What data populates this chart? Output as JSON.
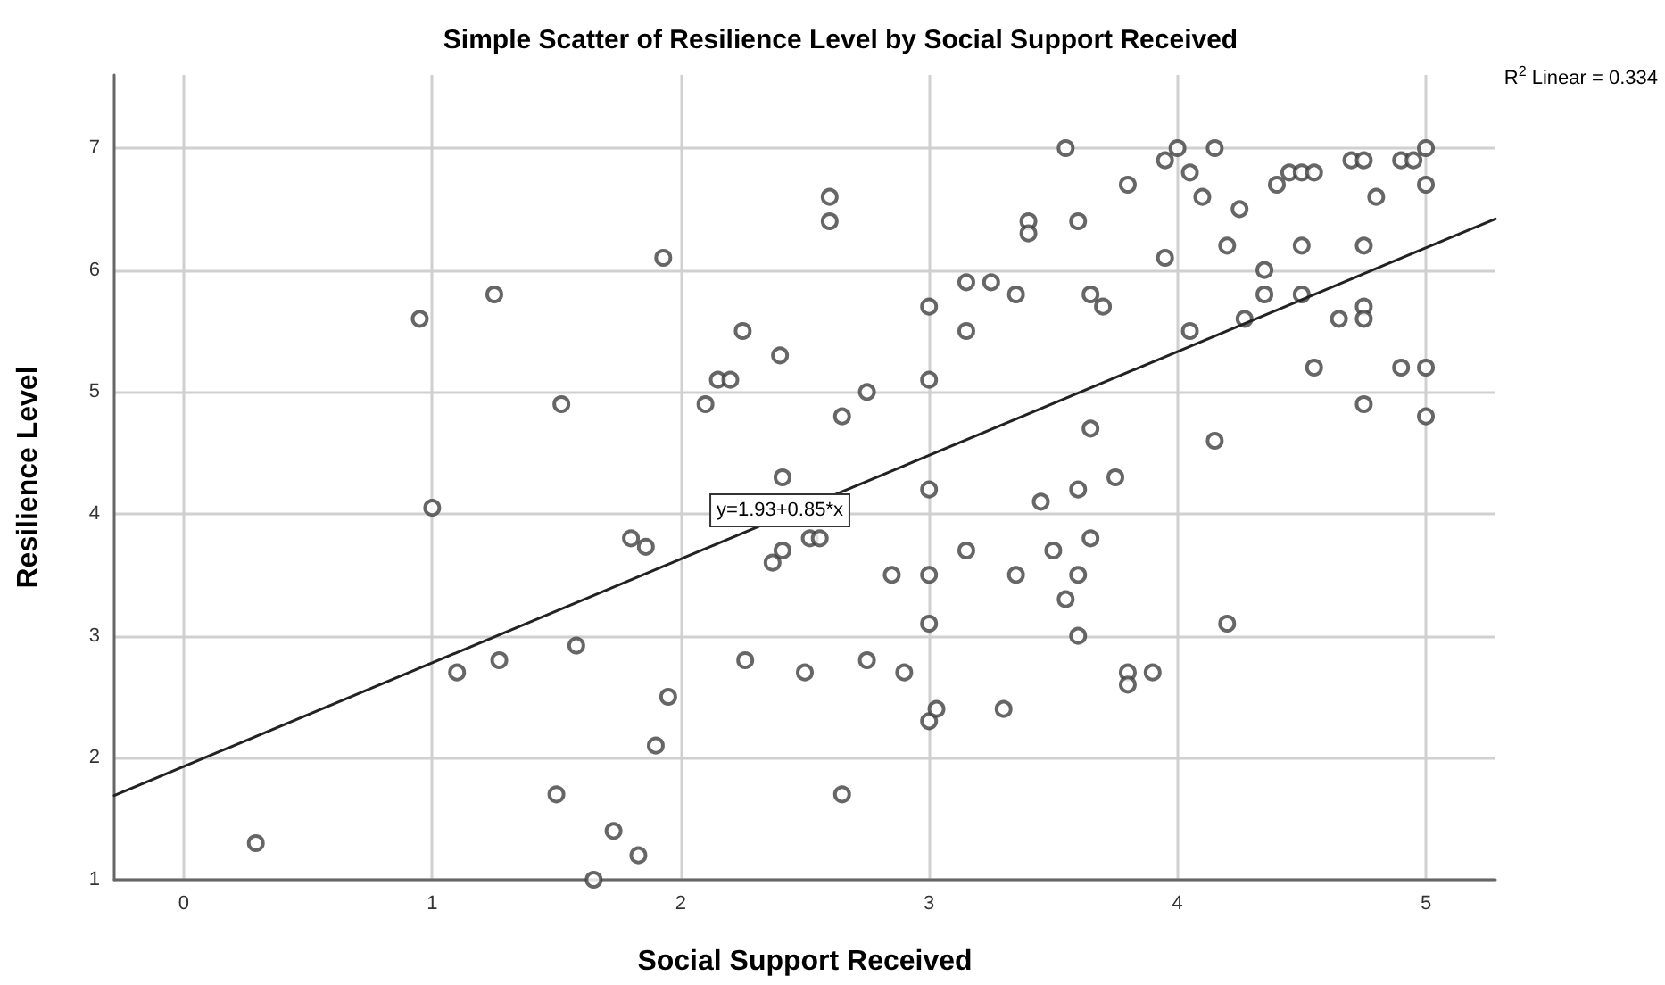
{
  "chart_data": {
    "type": "scatter",
    "title": "Simple Scatter of Resilience Level by Social Support Received",
    "xlabel": "Social Support Received",
    "ylabel": "Resilience Level",
    "xlim": [
      -0.28,
      5.28
    ],
    "ylim": [
      1,
      7.6
    ],
    "xticks": [
      0,
      1,
      2,
      3,
      4,
      5
    ],
    "yticks": [
      1,
      2,
      3,
      4,
      5,
      6,
      7
    ],
    "grid": true,
    "marker": "circle",
    "annotations": [
      "R$^{2}$ Linear = 0.334",
      "y=1.93+0.85*x"
    ],
    "series": [
      {
        "color": "#404040",
        "x": [
          0.29,
          0.95,
          1.0,
          1.1,
          1.25,
          1.27,
          1.5,
          1.52,
          1.58,
          1.65,
          1.73,
          1.8,
          1.83,
          1.86,
          1.9,
          1.93,
          1.95,
          2.1,
          2.15,
          2.2,
          2.25,
          2.26,
          2.37,
          2.4,
          2.41,
          2.41,
          2.5,
          2.52,
          2.56,
          2.6,
          2.6,
          2.65,
          2.65,
          2.75,
          2.75,
          2.85,
          2.9,
          3.0,
          3.0,
          3.0,
          3.0,
          3.0,
          3.0,
          3.03,
          3.15,
          3.15,
          3.15,
          3.25,
          3.3,
          3.35,
          3.35,
          3.4,
          3.4,
          3.45,
          3.5,
          3.55,
          3.55,
          3.6,
          3.6,
          3.6,
          3.6,
          3.65,
          3.65,
          3.65,
          3.7,
          3.75,
          3.8,
          3.8,
          3.8,
          3.9,
          3.95,
          3.95,
          4.0,
          4.05,
          4.05,
          4.1,
          4.15,
          4.15,
          4.2,
          4.2,
          4.25,
          4.27,
          4.35,
          4.35,
          4.4,
          4.45,
          4.5,
          4.5,
          4.5,
          4.55,
          4.55,
          4.65,
          4.7,
          4.75,
          4.75,
          4.75,
          4.75,
          4.75,
          4.8,
          4.9,
          4.9,
          4.95,
          5.0,
          5.0,
          5.0,
          5.0
        ],
        "values": [
          1.3,
          5.6,
          4.05,
          2.7,
          5.8,
          2.8,
          1.7,
          4.9,
          2.92,
          1.0,
          1.4,
          3.8,
          1.2,
          3.73,
          2.1,
          6.1,
          2.5,
          4.9,
          5.1,
          5.1,
          5.5,
          2.8,
          3.6,
          5.3,
          4.3,
          3.7,
          2.7,
          3.8,
          3.8,
          6.6,
          6.4,
          4.8,
          1.7,
          5.0,
          2.8,
          3.5,
          2.7,
          5.7,
          5.1,
          4.2,
          3.5,
          3.1,
          2.3,
          2.4,
          5.9,
          5.5,
          3.7,
          5.9,
          2.4,
          5.8,
          3.5,
          6.4,
          6.3,
          4.1,
          3.7,
          7.0,
          3.3,
          6.4,
          4.2,
          3.5,
          3.0,
          5.8,
          4.7,
          3.8,
          5.7,
          4.3,
          6.7,
          2.7,
          2.6,
          2.7,
          6.9,
          6.1,
          7.0,
          6.8,
          5.5,
          6.6,
          7.0,
          4.6,
          6.2,
          3.1,
          6.5,
          5.6,
          6.0,
          5.8,
          6.7,
          6.8,
          6.8,
          6.2,
          5.8,
          6.8,
          5.2,
          5.6,
          6.9,
          6.9,
          6.2,
          5.7,
          5.6,
          4.9,
          6.6,
          6.9,
          5.2,
          6.9,
          7.0,
          6.7,
          5.2,
          4.8
        ]
      },
      {
        "type": "line",
        "color": "#222222",
        "x": [
          -0.28,
          5.28
        ],
        "values": [
          1.69,
          6.42
        ],
        "marker": "none",
        "line_style": "solid"
      }
    ]
  }
}
